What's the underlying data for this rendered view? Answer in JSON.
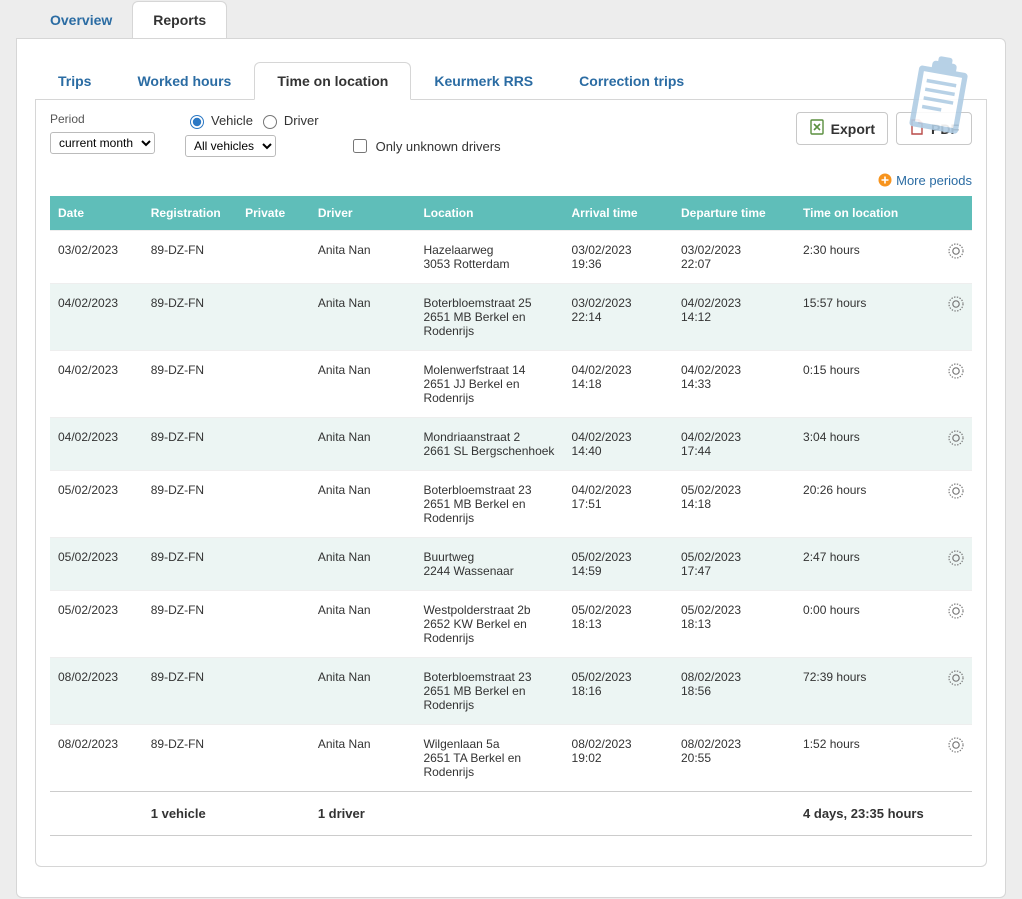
{
  "top_tabs": {
    "overview": "Overview",
    "reports": "Reports"
  },
  "sub_tabs": {
    "trips": "Trips",
    "worked_hours": "Worked hours",
    "time_on_location": "Time on location",
    "keurmerk": "Keurmerk RRS",
    "correction": "Correction trips"
  },
  "controls": {
    "period_label": "Period",
    "period_value": "current month",
    "vehicle_label": "Vehicle",
    "driver_label": "Driver",
    "all_vehicles": "All vehicles",
    "only_unknown": "Only unknown drivers"
  },
  "buttons": {
    "export": "Export",
    "pdf": "PDF"
  },
  "more_periods": "More periods",
  "columns": {
    "date": "Date",
    "registration": "Registration",
    "private": "Private",
    "driver": "Driver",
    "location": "Location",
    "arrival": "Arrival time",
    "departure": "Departure time",
    "tol": "Time on location"
  },
  "rows": [
    {
      "date": "03/02/2023",
      "reg": "89-DZ-FN",
      "priv": "",
      "driver": "Anita Nan",
      "loc_l1": "Hazelaarweg",
      "loc_l2": "3053 Rotterdam",
      "arr_d": "03/02/2023",
      "arr_t": "19:36",
      "dep_d": "03/02/2023",
      "dep_t": "22:07",
      "tol": "2:30 hours"
    },
    {
      "date": "04/02/2023",
      "reg": "89-DZ-FN",
      "priv": "",
      "driver": "Anita Nan",
      "loc_l1": "Boterbloemstraat 25",
      "loc_l2": "2651 MB Berkel en Rodenrijs",
      "arr_d": "03/02/2023",
      "arr_t": "22:14",
      "dep_d": "04/02/2023",
      "dep_t": "14:12",
      "tol": "15:57 hours"
    },
    {
      "date": "04/02/2023",
      "reg": "89-DZ-FN",
      "priv": "",
      "driver": "Anita Nan",
      "loc_l1": "Molenwerfstraat 14",
      "loc_l2": "2651 JJ Berkel en Rodenrijs",
      "arr_d": "04/02/2023",
      "arr_t": "14:18",
      "dep_d": "04/02/2023",
      "dep_t": "14:33",
      "tol": "0:15 hours"
    },
    {
      "date": "04/02/2023",
      "reg": "89-DZ-FN",
      "priv": "",
      "driver": "Anita Nan",
      "loc_l1": "Mondriaanstraat 2",
      "loc_l2": "2661 SL Bergschenhoek",
      "arr_d": "04/02/2023",
      "arr_t": "14:40",
      "dep_d": "04/02/2023",
      "dep_t": "17:44",
      "tol": "3:04 hours"
    },
    {
      "date": "05/02/2023",
      "reg": "89-DZ-FN",
      "priv": "",
      "driver": "Anita Nan",
      "loc_l1": "Boterbloemstraat 23",
      "loc_l2": "2651 MB Berkel en Rodenrijs",
      "arr_d": "04/02/2023",
      "arr_t": "17:51",
      "dep_d": "05/02/2023",
      "dep_t": "14:18",
      "tol": "20:26 hours"
    },
    {
      "date": "05/02/2023",
      "reg": "89-DZ-FN",
      "priv": "",
      "driver": "Anita Nan",
      "loc_l1": "Buurtweg",
      "loc_l2": "2244 Wassenaar",
      "arr_d": "05/02/2023",
      "arr_t": "14:59",
      "dep_d": "05/02/2023",
      "dep_t": "17:47",
      "tol": "2:47 hours"
    },
    {
      "date": "05/02/2023",
      "reg": "89-DZ-FN",
      "priv": "",
      "driver": "Anita Nan",
      "loc_l1": "Westpolderstraat 2b",
      "loc_l2": "2652 KW Berkel en Rodenrijs",
      "arr_d": "05/02/2023",
      "arr_t": "18:13",
      "dep_d": "05/02/2023",
      "dep_t": "18:13",
      "tol": "0:00 hours"
    },
    {
      "date": "08/02/2023",
      "reg": "89-DZ-FN",
      "priv": "",
      "driver": "Anita Nan",
      "loc_l1": "Boterbloemstraat 23",
      "loc_l2": "2651 MB Berkel en Rodenrijs",
      "arr_d": "05/02/2023",
      "arr_t": "18:16",
      "dep_d": "08/02/2023",
      "dep_t": "18:56",
      "tol": "72:39 hours"
    },
    {
      "date": "08/02/2023",
      "reg": "89-DZ-FN",
      "priv": "",
      "driver": "Anita Nan",
      "loc_l1": "Wilgenlaan 5a",
      "loc_l2": "2651 TA Berkel en Rodenrijs",
      "arr_d": "08/02/2023",
      "arr_t": "19:02",
      "dep_d": "08/02/2023",
      "dep_t": "20:55",
      "tol": "1:52 hours"
    }
  ],
  "footer": {
    "vehicles": "1 vehicle",
    "drivers": "1 driver",
    "total": "4 days, 23:35 hours"
  }
}
